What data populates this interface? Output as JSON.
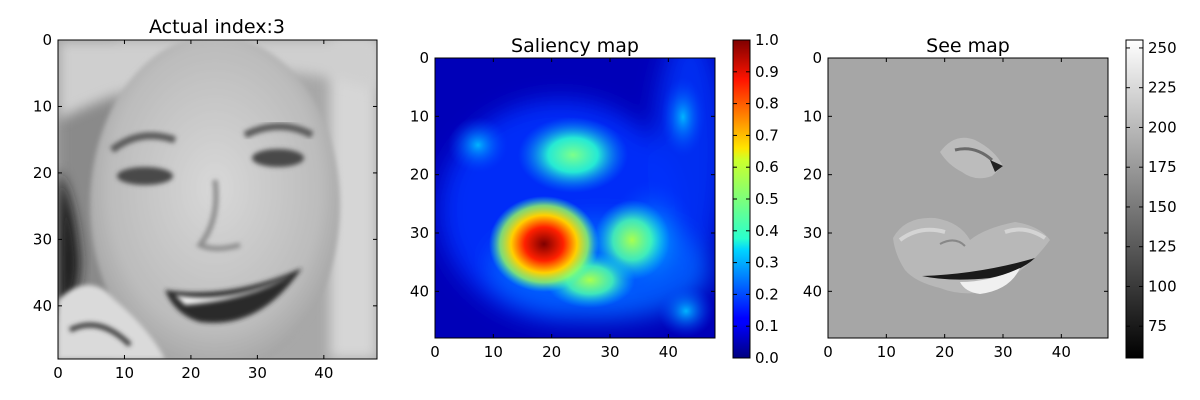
{
  "chart_data": [
    {
      "type": "heatmap",
      "title": "Actual index:3",
      "content": "grayscale photo of a smiling face",
      "xlim": [
        0,
        48
      ],
      "ylim": [
        48,
        0
      ],
      "xticks": [
        0,
        10,
        20,
        30,
        40
      ],
      "yticks": [
        0,
        10,
        20,
        30,
        40
      ],
      "colormap": "gray"
    },
    {
      "type": "heatmap",
      "title": "Saliency map",
      "xlim": [
        0,
        48
      ],
      "ylim": [
        48,
        0
      ],
      "xticks": [
        0,
        10,
        20,
        30,
        40
      ],
      "yticks": [
        0,
        10,
        20,
        30,
        40
      ],
      "colormap": "jet",
      "colorbar": {
        "min": 0.0,
        "max": 1.0,
        "ticks": [
          "0.0",
          "0.1",
          "0.2",
          "0.3",
          "0.4",
          "0.5",
          "0.6",
          "0.7",
          "0.8",
          "0.9",
          "1.0"
        ]
      },
      "hotspots": [
        {
          "x": 18,
          "y": 31.5,
          "value": 1.0
        },
        {
          "x": 22,
          "y": 16.5,
          "value": 0.42
        },
        {
          "x": 33,
          "y": 31,
          "value": 0.48
        },
        {
          "x": 26,
          "y": 37,
          "value": 0.45
        },
        {
          "x": 7,
          "y": 15,
          "value": 0.3
        },
        {
          "x": 42,
          "y": 10,
          "value": 0.22
        },
        {
          "x": 43,
          "y": 43,
          "value": 0.3
        }
      ]
    },
    {
      "type": "heatmap",
      "title": "See map",
      "xlim": [
        0,
        48
      ],
      "ylim": [
        48,
        0
      ],
      "xticks": [
        0,
        10,
        20,
        30,
        40
      ],
      "yticks": [
        0,
        10,
        20,
        30,
        40
      ],
      "colormap": "gray",
      "background_value": 170,
      "colorbar": {
        "min": 55,
        "max": 255,
        "ticks": [
          "75",
          "100",
          "125",
          "150",
          "175",
          "200",
          "225",
          "250"
        ]
      }
    }
  ]
}
